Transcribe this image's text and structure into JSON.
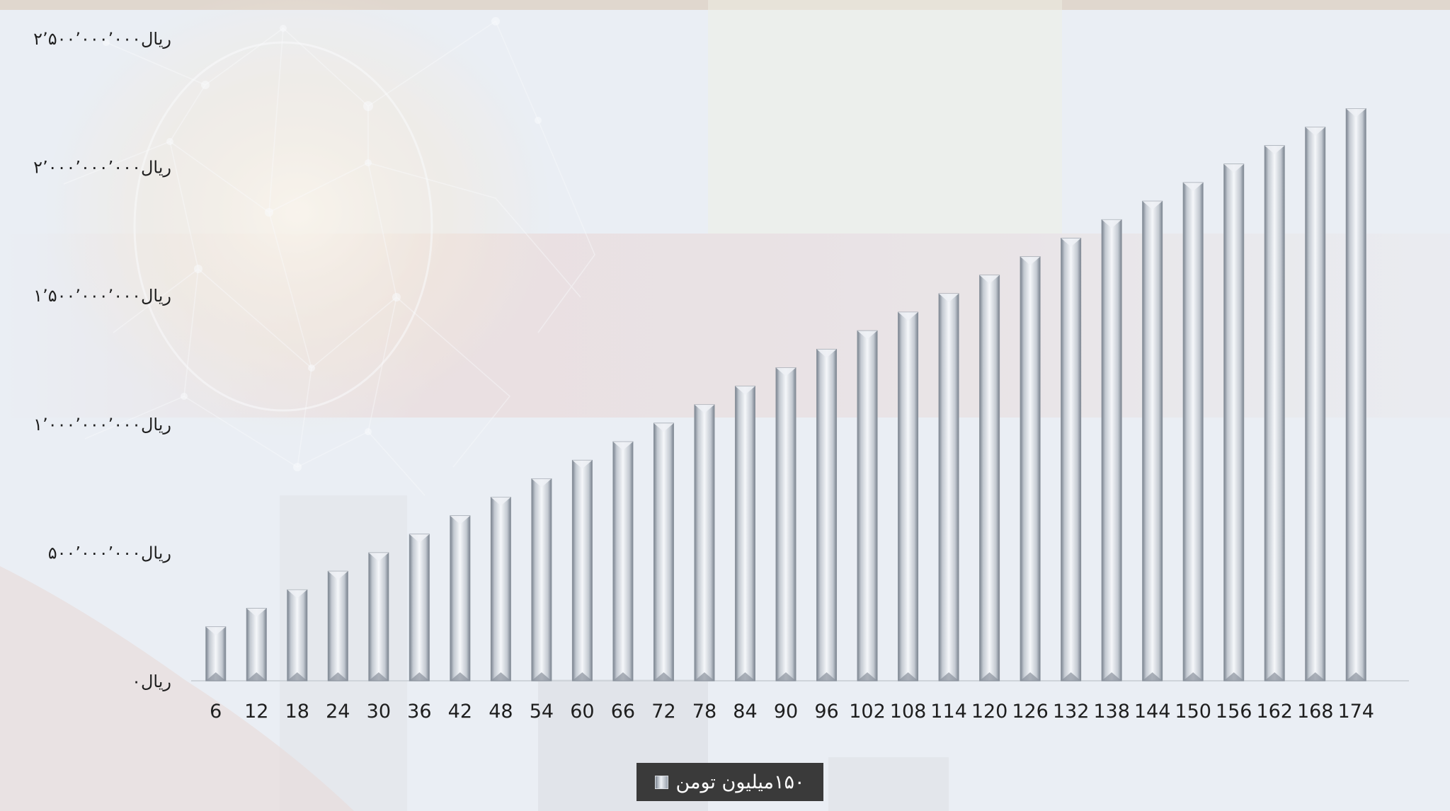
{
  "chart_data": {
    "type": "bar",
    "title": "",
    "xlabel": "",
    "ylabel": "",
    "categories": [
      "6",
      "12",
      "18",
      "24",
      "30",
      "36",
      "42",
      "48",
      "54",
      "60",
      "66",
      "72",
      "78",
      "84",
      "90",
      "96",
      "102",
      "108",
      "114",
      "120",
      "126",
      "132",
      "138",
      "144",
      "150",
      "156",
      "162",
      "168",
      "174"
    ],
    "series": [
      {
        "name": "۱۵۰میلیون تومن",
        "values": [
          210000000,
          282000000,
          354000000,
          426000000,
          498000000,
          570000000,
          642000000,
          714000000,
          786000000,
          858000000,
          930000000,
          1002000000,
          1074000000,
          1146000000,
          1218000000,
          1290000000,
          1362000000,
          1434000000,
          1506000000,
          1578000000,
          1650000000,
          1722000000,
          1794000000,
          1866000000,
          1938000000,
          2010000000,
          2082000000,
          2154000000,
          2226000000
        ]
      }
    ],
    "ylim": [
      0,
      2500000000
    ],
    "yticks": [
      0,
      500000000,
      1000000000,
      1500000000,
      2000000000,
      2500000000
    ],
    "ytick_labels": [
      "ریال۰",
      "ریال۵۰۰٬۰۰۰٬۰۰۰",
      "ریال۱٬۰۰۰٬۰۰۰٬۰۰۰",
      "ریال۱٬۵۰۰٬۰۰۰٬۰۰۰",
      "ریال۲٬۰۰۰٬۰۰۰٬۰۰۰",
      "ریال۲٬۵۰۰٬۰۰۰٬۰۰۰"
    ],
    "grid": false,
    "legend_position": "bottom"
  },
  "legend": {
    "label": "۱۵۰میلیون تومن"
  },
  "colors": {
    "bar_edge": "#7f8894",
    "bar_light": "#f4f6f9",
    "legend_bg": "#3a3a3a"
  }
}
